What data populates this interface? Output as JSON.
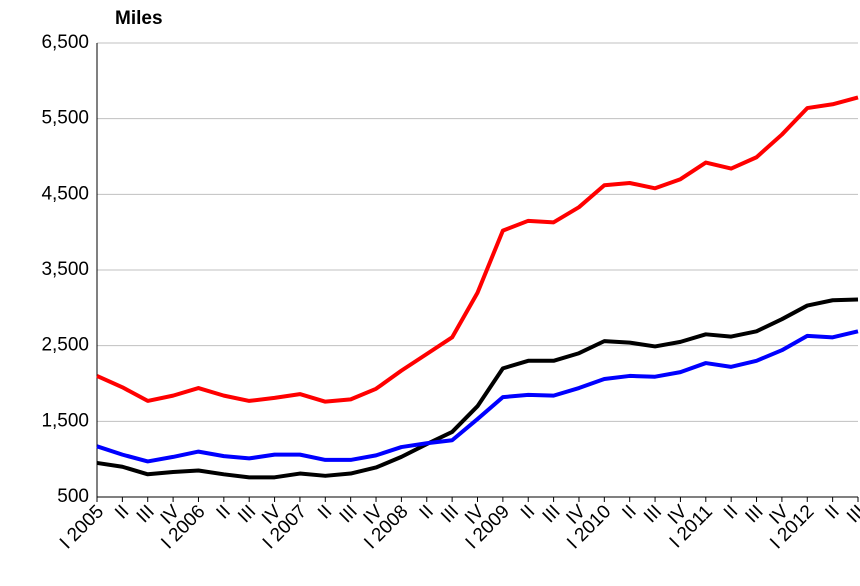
{
  "chart_data": {
    "type": "line",
    "title": "Miles",
    "categories": [
      "I 2005",
      "II",
      "III",
      "IV",
      "I 2006",
      "II",
      "III",
      "IV",
      "I 2007",
      "II",
      "III",
      "IV",
      "I 2008",
      "II",
      "III",
      "IV",
      "I 2009",
      "II",
      "III",
      "IV",
      "I 2010",
      "II",
      "III",
      "IV",
      "I 2011",
      "II",
      "III",
      "IV",
      "I 2012",
      "II",
      "III"
    ],
    "series": [
      {
        "color": "#ff0000",
        "values": [
          2100,
          1950,
          1770,
          1840,
          1940,
          1840,
          1770,
          1810,
          1860,
          1760,
          1790,
          1930,
          2170,
          2390,
          2610,
          3200,
          4020,
          4150,
          4130,
          4330,
          4620,
          4650,
          4580,
          4700,
          4920,
          4840,
          4990,
          5290,
          5640,
          5690,
          5780
        ]
      },
      {
        "color": "#000000",
        "values": [
          950,
          900,
          800,
          830,
          850,
          800,
          760,
          760,
          810,
          780,
          810,
          890,
          1030,
          1200,
          1360,
          1700,
          2200,
          2300,
          2300,
          2400,
          2560,
          2540,
          2490,
          2550,
          2650,
          2620,
          2690,
          2850,
          3030,
          3100,
          3110
        ]
      },
      {
        "color": "#0000ff",
        "values": [
          1170,
          1060,
          970,
          1030,
          1100,
          1040,
          1010,
          1060,
          1060,
          990,
          990,
          1050,
          1160,
          1210,
          1250,
          1530,
          1820,
          1850,
          1840,
          1940,
          2060,
          2100,
          2090,
          2150,
          2270,
          2220,
          2300,
          2440,
          2630,
          2610,
          2690
        ]
      }
    ],
    "ylim": [
      500,
      6500
    ],
    "yticks": [
      {
        "value": 500,
        "label": "500"
      },
      {
        "value": 1500,
        "label": "1,500"
      },
      {
        "value": 2500,
        "label": "2,500"
      },
      {
        "value": 3500,
        "label": "3,500"
      },
      {
        "value": 4500,
        "label": "4,500"
      },
      {
        "value": 5500,
        "label": "5,500"
      },
      {
        "value": 6500,
        "label": "6,500"
      }
    ],
    "grid": true
  }
}
